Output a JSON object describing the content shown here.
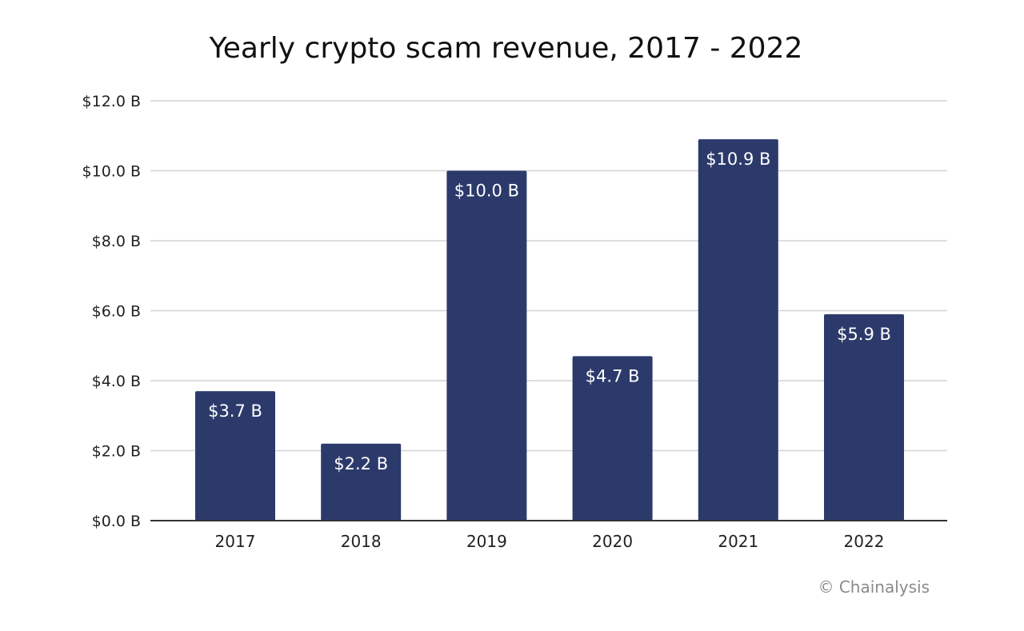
{
  "chart_data": {
    "type": "bar",
    "title": "Yearly crypto scam revenue, 2017 - 2022",
    "categories": [
      "2017",
      "2018",
      "2019",
      "2020",
      "2021",
      "2022"
    ],
    "values": [
      3.7,
      2.2,
      10.0,
      4.7,
      10.9,
      5.9
    ],
    "data_labels": [
      "$3.7 B",
      "$2.2 B",
      "$10.0 B",
      "$4.7 B",
      "$10.9 B",
      "$5.9 B"
    ],
    "yticks": [
      0,
      2,
      4,
      6,
      8,
      10,
      12
    ],
    "ytick_labels": [
      "$0.0 B",
      "$2.0 B",
      "$4.0 B",
      "$6.0 B",
      "$8.0 B",
      "$10.0 B",
      "$12.0 B"
    ],
    "ylim": [
      0,
      12
    ],
    "xlabel": "",
    "ylabel": "",
    "grid": true,
    "legend": "none",
    "bar_color": "#2c3a6b",
    "grid_color": "#d4d4d4",
    "axis_color": "#333333"
  },
  "credit": "© Chainalysis"
}
